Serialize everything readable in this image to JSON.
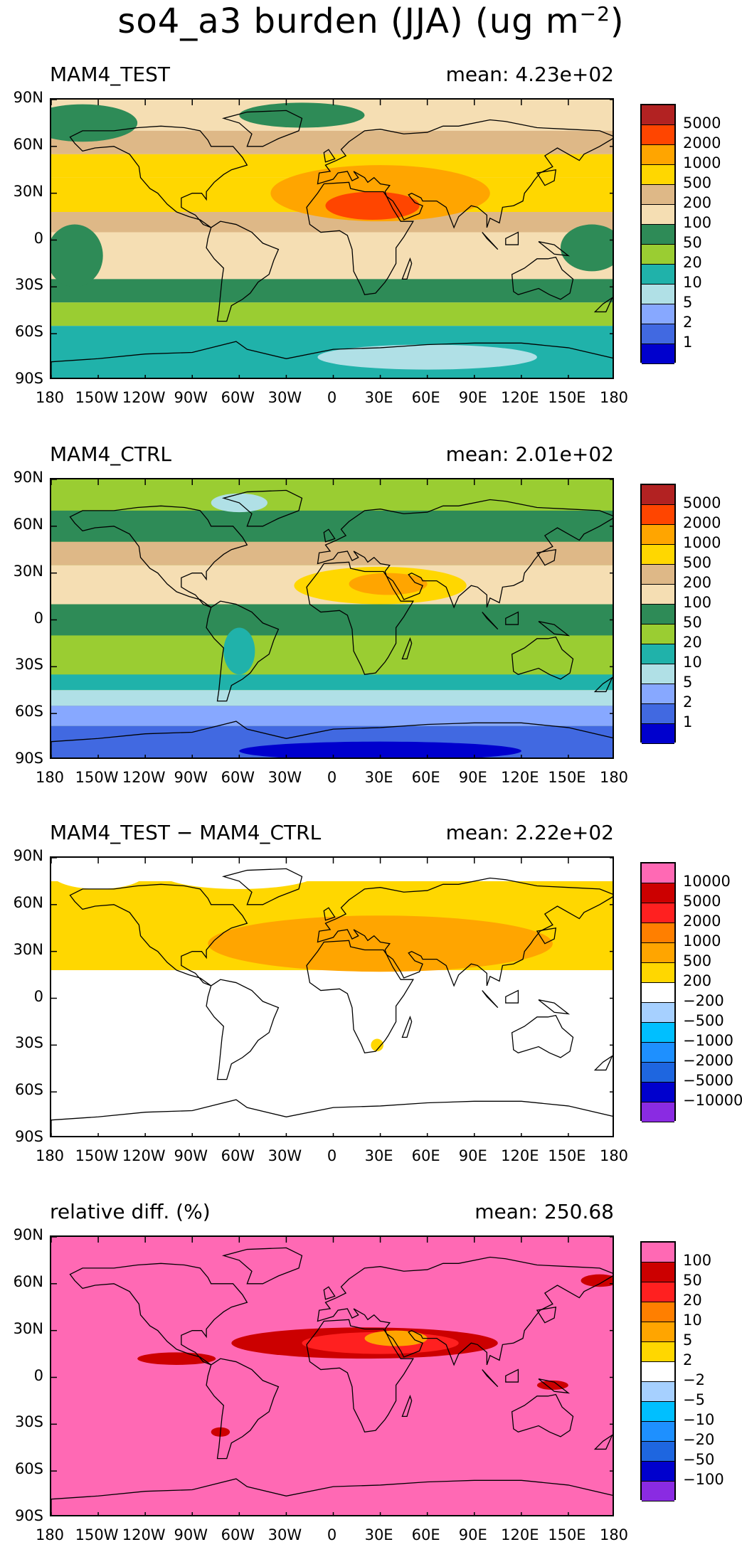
{
  "title": {
    "main": "so4_a3 burden (JJA) (ug m",
    "exponent": "−2",
    "close": ")"
  },
  "lat_ticks": [
    "90N",
    "60N",
    "30N",
    "0",
    "30S",
    "60S",
    "90S"
  ],
  "lon_ticks": [
    "180",
    "150W",
    "120W",
    "90W",
    "60W",
    "30W",
    "0",
    "30E",
    "60E",
    "90E",
    "120E",
    "150E",
    "180"
  ],
  "panels": [
    {
      "label": "MAM4_TEST",
      "mean": "mean: 4.23e+02",
      "background": "#f5e6c8",
      "colorbar": {
        "colors": [
          "#b22222",
          "#ff4500",
          "#ffa500",
          "#ffd700",
          "#deb887",
          "#f5deb3",
          "#2e8b57",
          "#9acd32",
          "#20b2aa",
          "#b0e0e6",
          "#87a8ff",
          "#4169e1",
          "#0000cd"
        ],
        "labels": [
          "5000",
          "2000",
          "1000",
          "500",
          "200",
          "100",
          "50",
          "20",
          "10",
          "5",
          "2",
          "1"
        ]
      },
      "bands": [
        {
          "from": 90,
          "to": 70,
          "color": "#f5deb3"
        },
        {
          "from": 70,
          "to": 55,
          "color": "#deb887"
        },
        {
          "from": 55,
          "to": 40,
          "color": "#ffd700"
        },
        {
          "from": 40,
          "to": 18,
          "color": "#ffd700"
        },
        {
          "from": 18,
          "to": 5,
          "color": "#deb887"
        },
        {
          "from": 5,
          "to": -25,
          "color": "#f5deb3"
        },
        {
          "from": -25,
          "to": -40,
          "color": "#2e8b57"
        },
        {
          "from": -40,
          "to": -55,
          "color": "#9acd32"
        },
        {
          "from": -55,
          "to": -72,
          "color": "#20b2aa"
        },
        {
          "from": -72,
          "to": -90,
          "color": "#20b2aa"
        }
      ],
      "blobs": [
        {
          "lon": 30,
          "lat": 30,
          "rx": 70,
          "ry": 18,
          "color": "#ffa500"
        },
        {
          "lon": 25,
          "lat": 22,
          "rx": 30,
          "ry": 9,
          "color": "#ff4500"
        },
        {
          "lon": -160,
          "lat": 75,
          "rx": 35,
          "ry": 12,
          "color": "#2e8b57"
        },
        {
          "lon": -20,
          "lat": 80,
          "rx": 40,
          "ry": 8,
          "color": "#2e8b57"
        },
        {
          "lon": -165,
          "lat": -10,
          "rx": 18,
          "ry": 20,
          "color": "#2e8b57"
        },
        {
          "lon": 165,
          "lat": -5,
          "rx": 20,
          "ry": 15,
          "color": "#2e8b57"
        },
        {
          "lon": 60,
          "lat": -75,
          "rx": 70,
          "ry": 8,
          "color": "#b0e0e6"
        }
      ]
    },
    {
      "label": "MAM4_CTRL",
      "mean": "mean: 2.01e+02",
      "background": "#9acd32",
      "colorbar": {
        "colors": [
          "#b22222",
          "#ff4500",
          "#ffa500",
          "#ffd700",
          "#deb887",
          "#f5deb3",
          "#2e8b57",
          "#9acd32",
          "#20b2aa",
          "#b0e0e6",
          "#87a8ff",
          "#4169e1",
          "#0000cd"
        ],
        "labels": [
          "5000",
          "2000",
          "1000",
          "500",
          "200",
          "100",
          "50",
          "20",
          "10",
          "5",
          "2",
          "1"
        ]
      },
      "bands": [
        {
          "from": 90,
          "to": 70,
          "color": "#9acd32"
        },
        {
          "from": 70,
          "to": 50,
          "color": "#2e8b57"
        },
        {
          "from": 50,
          "to": 35,
          "color": "#deb887"
        },
        {
          "from": 35,
          "to": 10,
          "color": "#f5deb3"
        },
        {
          "from": 10,
          "to": -10,
          "color": "#2e8b57"
        },
        {
          "from": -10,
          "to": -35,
          "color": "#9acd32"
        },
        {
          "from": -35,
          "to": -45,
          "color": "#20b2aa"
        },
        {
          "from": -45,
          "to": -55,
          "color": "#b0e0e6"
        },
        {
          "from": -55,
          "to": -68,
          "color": "#87a8ff"
        },
        {
          "from": -68,
          "to": -90,
          "color": "#4169e1"
        }
      ],
      "blobs": [
        {
          "lon": 30,
          "lat": 22,
          "rx": 55,
          "ry": 12,
          "color": "#ffd700"
        },
        {
          "lon": 35,
          "lat": 23,
          "rx": 25,
          "ry": 7,
          "color": "#ffa500"
        },
        {
          "lon": -60,
          "lat": 75,
          "rx": 18,
          "ry": 6,
          "color": "#b0e0e6"
        },
        {
          "lon": 30,
          "lat": -84,
          "rx": 90,
          "ry": 6,
          "color": "#0000cd"
        },
        {
          "lon": -60,
          "lat": -20,
          "rx": 10,
          "ry": 15,
          "color": "#20b2aa"
        }
      ]
    },
    {
      "label": "MAM4_TEST − MAM4_CTRL",
      "mean": "mean: 2.22e+02",
      "background": "#ffffff",
      "colorbar": {
        "colors": [
          "#ff69b4",
          "#cc0000",
          "#ff2020",
          "#ff7f00",
          "#ffa500",
          "#ffd700",
          "#ffffff",
          "#a6d0ff",
          "#00bfff",
          "#1e90ff",
          "#1e66e0",
          "#0000cd",
          "#8a2be2"
        ],
        "labels": [
          "10000",
          "5000",
          "2000",
          "1000",
          "500",
          "200",
          "−200",
          "−500",
          "−1000",
          "−2000",
          "−5000",
          "−10000"
        ]
      },
      "bands": [
        {
          "from": 75,
          "to": 18,
          "color": "#ffd700"
        }
      ],
      "blobs": [
        {
          "lon": 30,
          "lat": 35,
          "rx": 110,
          "ry": 18,
          "color": "#ffa500"
        },
        {
          "lon": -150,
          "lat": 80,
          "rx": 30,
          "ry": 10,
          "color": "#ffffff"
        },
        {
          "lon": -60,
          "lat": 80,
          "rx": 50,
          "ry": 10,
          "color": "#ffffff"
        },
        {
          "lon": 28,
          "lat": -30,
          "rx": 4,
          "ry": 4,
          "color": "#ffd700"
        }
      ]
    },
    {
      "label": "relative diff. (%)",
      "mean": "mean: 250.68",
      "background": "#ff69b4",
      "colorbar": {
        "colors": [
          "#ff69b4",
          "#cc0000",
          "#ff2020",
          "#ff7f00",
          "#ffa500",
          "#ffd700",
          "#ffffff",
          "#a6d0ff",
          "#00bfff",
          "#1e90ff",
          "#1e66e0",
          "#0000cd",
          "#8a2be2"
        ],
        "labels": [
          "100",
          "50",
          "20",
          "10",
          "5",
          "2",
          "−2",
          "−5",
          "−10",
          "−20",
          "−50",
          "−100"
        ]
      },
      "bands": [],
      "blobs": [
        {
          "lon": 20,
          "lat": 22,
          "rx": 85,
          "ry": 10,
          "color": "#cc0000"
        },
        {
          "lon": 30,
          "lat": 22,
          "rx": 50,
          "ry": 7,
          "color": "#ff2020"
        },
        {
          "lon": 40,
          "lat": 25,
          "rx": 20,
          "ry": 5,
          "color": "#ffa500"
        },
        {
          "lon": -100,
          "lat": 12,
          "rx": 25,
          "ry": 4,
          "color": "#cc0000"
        },
        {
          "lon": 170,
          "lat": 62,
          "rx": 12,
          "ry": 4,
          "color": "#cc0000"
        },
        {
          "lon": -72,
          "lat": -35,
          "rx": 6,
          "ry": 3,
          "color": "#cc0000"
        },
        {
          "lon": 140,
          "lat": -5,
          "rx": 10,
          "ry": 3,
          "color": "#cc0000"
        }
      ]
    }
  ]
}
